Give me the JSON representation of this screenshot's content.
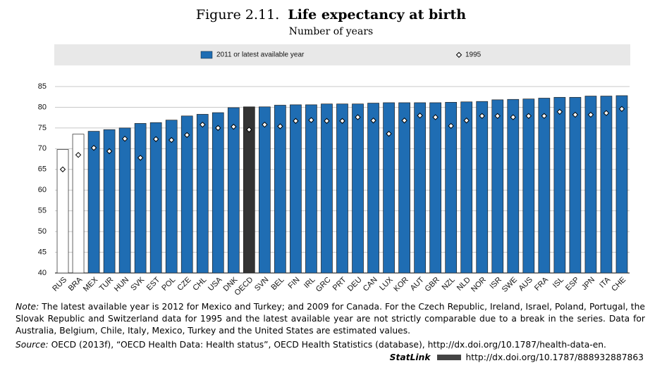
{
  "chart_data": {
    "type": "bar",
    "figure_number": "Figure 2.11.",
    "title": "Life expectancy at birth",
    "subtitle": "Number of years",
    "categories": [
      "RUS",
      "BRA",
      "MEX",
      "TUR",
      "HUN",
      "SVK",
      "EST",
      "POL",
      "CZE",
      "CHL",
      "USA",
      "DNK",
      "OECD",
      "SVN",
      "BEL",
      "FIN",
      "IRL",
      "GRC",
      "PRT",
      "DEU",
      "CAN",
      "LUX",
      "KOR",
      "AUT",
      "GBR",
      "NZL",
      "NLD",
      "NOR",
      "ISR",
      "SWE",
      "AUS",
      "FRA",
      "ISL",
      "ESP",
      "JPN",
      "ITA",
      "CHE"
    ],
    "series": [
      {
        "name": "2011 or latest available year",
        "color": "#1f6db3",
        "bar_colors": [
          "#ffffff",
          "#ffffff",
          "#1f6db3",
          "#1f6db3",
          "#1f6db3",
          "#1f6db3",
          "#1f6db3",
          "#1f6db3",
          "#1f6db3",
          "#1f6db3",
          "#1f6db3",
          "#1f6db3",
          "#333333",
          "#1f6db3",
          "#1f6db3",
          "#1f6db3",
          "#1f6db3",
          "#1f6db3",
          "#1f6db3",
          "#1f6db3",
          "#1f6db3",
          "#1f6db3",
          "#1f6db3",
          "#1f6db3",
          "#1f6db3",
          "#1f6db3",
          "#1f6db3",
          "#1f6db3",
          "#1f6db3",
          "#1f6db3",
          "#1f6db3",
          "#1f6db3",
          "#1f6db3",
          "#1f6db3",
          "#1f6db3",
          "#1f6db3",
          "#1f6db3"
        ],
        "values": [
          69.8,
          73.5,
          74.2,
          74.6,
          75.0,
          76.1,
          76.3,
          76.9,
          77.9,
          78.3,
          78.7,
          79.9,
          80.1,
          80.1,
          80.5,
          80.6,
          80.6,
          80.8,
          80.8,
          80.8,
          81.0,
          81.1,
          81.1,
          81.1,
          81.1,
          81.2,
          81.3,
          81.4,
          81.8,
          81.9,
          82.0,
          82.2,
          82.4,
          82.4,
          82.7,
          82.7,
          82.8
        ]
      },
      {
        "name": "1995",
        "color": "#ffffff",
        "marker": "diamond",
        "values": [
          65.0,
          68.5,
          70.2,
          69.4,
          72.4,
          67.8,
          72.3,
          72.1,
          73.3,
          75.8,
          75.0,
          75.3,
          74.6,
          75.8,
          75.4,
          76.7,
          76.9,
          76.7,
          76.7,
          77.6,
          76.8,
          73.6,
          76.8,
          78.0,
          77.6,
          75.5,
          76.8,
          77.9,
          77.9,
          77.6,
          77.9,
          77.9,
          78.9,
          78.2,
          78.2,
          78.6,
          79.6
        ]
      }
    ],
    "ylim": [
      40,
      85
    ],
    "yticks": [
      40,
      45,
      50,
      55,
      60,
      65,
      70,
      75,
      80,
      85
    ],
    "grid": true,
    "note_label": "Note:",
    "note": "The latest available year is 2012 for Mexico and Turkey; and 2009 for Canada. For the Czech Republic, Ireland, Israel, Poland, Portugal, the Slovak Republic and Switzerland data for 1995 and the latest available year are not strictly comparable due to a break in the series. Data for Australia, Belgium, Chile, Italy, Mexico, Turkey and the United States are estimated values.",
    "source_label": "Source:",
    "source": "OECD (2013f), “OECD Health Data: Health status”, OECD Health Statistics (database), http://dx.doi.org/10.1787/health-data-en.",
    "statlink_label": "StatLink",
    "statlink_url": "http://dx.doi.org/10.1787/888932887863"
  }
}
